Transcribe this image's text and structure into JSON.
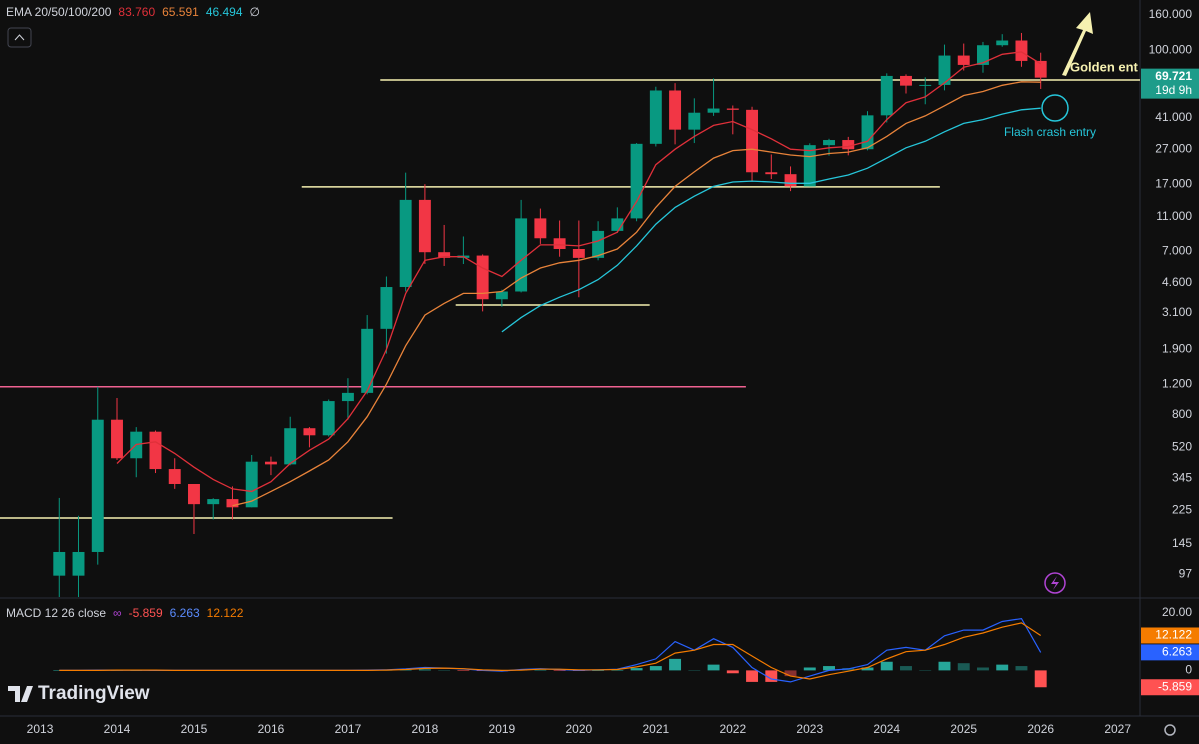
{
  "chart_data": [
    {
      "type": "candlestick",
      "indicator_label": "EMA 20/50/100/200",
      "ema200_label": "∅",
      "x": [
        2013.25,
        2013.5,
        2013.75,
        2014.0,
        2014.25,
        2014.5,
        2014.75,
        2015.0,
        2015.25,
        2015.5,
        2015.75,
        2016.0,
        2016.25,
        2016.5,
        2016.75,
        2017.0,
        2017.25,
        2017.5,
        2017.75,
        2018.0,
        2018.25,
        2018.5,
        2018.75,
        2019.0,
        2019.25,
        2019.5,
        2019.75,
        2020.0,
        2020.25,
        2020.5,
        2020.75,
        2021.0,
        2021.25,
        2021.5,
        2021.75,
        2022.0,
        2022.25,
        2022.5,
        2022.75,
        2023.0,
        2023.25,
        2023.5,
        2023.75,
        2024.0,
        2024.25,
        2024.5,
        2024.75,
        2025.0,
        2025.25,
        2025.5,
        2025.75,
        2026.0
      ],
      "open": [
        95,
        95,
        130,
        750,
        450,
        640,
        390,
        320,
        245,
        262,
        235,
        430,
        415,
        670,
        610,
        960,
        1070,
        2500,
        4350,
        13800,
        6900,
        6400,
        6600,
        3700,
        4100,
        10800,
        8300,
        7200,
        6400,
        9150,
        10800,
        29000,
        58800,
        35000,
        43800,
        46300,
        45500,
        19900,
        19400,
        16500,
        28500,
        30500,
        27000,
        42300,
        71300,
        62700,
        63300,
        93400,
        82500,
        107100,
        114000,
        87000
      ],
      "high": [
        266,
        210,
        1160,
        1000,
        680,
        650,
        450,
        320,
        265,
        310,
        470,
        460,
        780,
        680,
        980,
        1300,
        3000,
        5000,
        19800,
        17000,
        9900,
        8500,
        6700,
        4200,
        13800,
        12300,
        10500,
        10500,
        10400,
        12500,
        29300,
        61800,
        64800,
        53000,
        69000,
        48200,
        47400,
        25200,
        21500,
        29200,
        31000,
        31800,
        44700,
        73800,
        72800,
        70000,
        108000,
        109500,
        111900,
        124000,
        126000,
        97000
      ],
      "low": [
        65,
        70,
        110,
        440,
        350,
        370,
        300,
        165,
        200,
        200,
        235,
        360,
        410,
        520,
        600,
        750,
        1050,
        1800,
        4100,
        5900,
        5750,
        5900,
        3150,
        3350,
        4050,
        7700,
        6500,
        3800,
        6200,
        8900,
        10400,
        28000,
        28800,
        29300,
        42000,
        32900,
        17600,
        18200,
        15500,
        16500,
        24800,
        24900,
        26600,
        38500,
        56500,
        49000,
        58900,
        76600,
        74400,
        105000,
        80500,
        60000
      ],
      "close": [
        130,
        130,
        750,
        450,
        640,
        390,
        320,
        245,
        262,
        235,
        430,
        415,
        670,
        610,
        960,
        1070,
        2500,
        4350,
        13800,
        6900,
        6400,
        6600,
        3700,
        4100,
        10800,
        8300,
        7200,
        6400,
        9150,
        10800,
        29000,
        58800,
        35000,
        43800,
        46300,
        45500,
        19900,
        19400,
        16500,
        28500,
        30500,
        27000,
        42300,
        71300,
        62700,
        63300,
        93400,
        82500,
        107100,
        114000,
        87000,
        69721
      ],
      "up_color": "#089981",
      "down_color": "#f23645",
      "log_scale": true,
      "xlim": [
        2012.48,
        2027.29
      ],
      "ylim": [
        71.6,
        195000
      ],
      "xticks": [
        2013,
        2014,
        2015,
        2016,
        2017,
        2018,
        2019,
        2020,
        2021,
        2022,
        2023,
        2024,
        2025,
        2026,
        2027
      ],
      "yticks": [
        {
          "value": 160000,
          "label": "160.000"
        },
        {
          "value": 100000,
          "label": "100.000"
        },
        {
          "value": 41000,
          "label": "41.000"
        },
        {
          "value": 27000,
          "label": "27.000"
        },
        {
          "value": 17000,
          "label": "17.000"
        },
        {
          "value": 11000,
          "label": "11.000"
        },
        {
          "value": 7000,
          "label": "7.000"
        },
        {
          "value": 4600,
          "label": "4.600"
        },
        {
          "value": 3100,
          "label": "3.100"
        },
        {
          "value": 1900,
          "label": "1.900"
        },
        {
          "value": 1200,
          "label": "1.200"
        },
        800,
        520,
        345,
        225,
        145,
        97
      ],
      "series": [
        {
          "color": "#e0303a",
          "value_label": "83.760",
          "values": [
            null,
            null,
            null,
            420,
            540,
            560,
            480,
            400,
            340,
            300,
            290,
            330,
            420,
            500,
            580,
            760,
            1100,
            1900,
            4000,
            6200,
            6500,
            6500,
            5600,
            5000,
            6200,
            7600,
            7600,
            7500,
            8000,
            9000,
            13500,
            22000,
            27000,
            32000,
            37000,
            39000,
            35000,
            31000,
            27000,
            26500,
            27500,
            28000,
            30000,
            40000,
            50000,
            54000,
            65000,
            80000,
            85000,
            95000,
            98000,
            83760
          ]
        },
        {
          "color": "#e8833a",
          "value_label": "65.591",
          "values": [
            null,
            null,
            null,
            null,
            null,
            null,
            null,
            null,
            null,
            240,
            255,
            290,
            330,
            380,
            440,
            560,
            780,
            1200,
            2000,
            3000,
            3500,
            4000,
            4000,
            4100,
            4900,
            5600,
            6000,
            6200,
            6600,
            7200,
            9000,
            12500,
            16500,
            20000,
            24000,
            26500,
            27000,
            26000,
            25000,
            24500,
            25500,
            26000,
            27500,
            32000,
            38000,
            42000,
            48000,
            55000,
            58000,
            63000,
            66000,
            65591
          ]
        },
        {
          "color": "#26c6da",
          "value_label": "46.494",
          "values": [
            null,
            null,
            null,
            null,
            null,
            null,
            null,
            null,
            null,
            null,
            null,
            null,
            null,
            null,
            null,
            null,
            null,
            null,
            null,
            null,
            null,
            null,
            null,
            2400,
            2900,
            3400,
            3800,
            4200,
            4800,
            5800,
            7500,
            10000,
            12500,
            14500,
            16500,
            17500,
            17700,
            17500,
            17200,
            17200,
            18200,
            19200,
            21000,
            24000,
            27500,
            30000,
            34000,
            38000,
            40000,
            43000,
            45500,
            46494
          ]
        }
      ],
      "last_price": {
        "value": 69721,
        "label": "69.721"
      },
      "countdown": "19d 9h",
      "levels": [
        {
          "value": 67600,
          "x": [
            2017.42,
            2027.29
          ],
          "color": "#f5f0b0"
        },
        {
          "value": 16400,
          "x": [
            2016.4,
            2024.69
          ],
          "color": "#f5f0b0"
        },
        {
          "value": 3430,
          "x": [
            2018.4,
            2020.92
          ],
          "color": "#f5f0b0"
        },
        {
          "value": 1160,
          "x": [
            2012.48,
            2022.17
          ],
          "color": "#f06292"
        },
        {
          "value": 204,
          "x": [
            2012.48,
            2017.58
          ],
          "color": "#f5f0b0"
        }
      ],
      "annotations": [
        "Golden ent",
        "Flash crash entry"
      ]
    },
    {
      "type": "macd",
      "label": "MACD 12 26 close",
      "ylim": [
        -15.5,
        24.8
      ],
      "yticks": [
        {
          "value": 20,
          "label": "20.00"
        },
        0
      ],
      "series": [
        {
          "color": "#2962ff",
          "value_label": "6.263",
          "values": [
            0,
            0,
            0.1,
            0.1,
            0.1,
            0,
            0,
            0,
            0,
            0,
            0,
            0,
            0,
            0,
            0,
            0,
            0.1,
            0.2,
            0.5,
            1,
            0.8,
            0.5,
            0,
            -0.3,
            0.3,
            0.6,
            0.3,
            0,
            0.2,
            0.4,
            2,
            4,
            10,
            7,
            11,
            8,
            1,
            -3,
            -4,
            -2,
            0,
            0.5,
            2,
            7,
            8,
            7,
            12,
            14,
            14,
            17,
            18,
            6.263
          ]
        },
        {
          "color": "#f57c00",
          "value_label": "12.122",
          "values": [
            0,
            0,
            0,
            0.1,
            0.1,
            0.1,
            0,
            0,
            0,
            0,
            0,
            0,
            0,
            0,
            0,
            0,
            0,
            0.1,
            0.3,
            0.7,
            0.8,
            0.6,
            0.2,
            0,
            0.1,
            0.4,
            0.4,
            0.2,
            0.2,
            0.3,
            1.2,
            2.5,
            6,
            7,
            9,
            9,
            5,
            1,
            -2,
            -3,
            -1.5,
            -0.3,
            1,
            4,
            6.5,
            7,
            9,
            11.5,
            13,
            15,
            16.5,
            12.122
          ]
        }
      ],
      "histogram": {
        "value_label": "-5.859",
        "up_color": "#26a69a",
        "down_color": "#ff5252",
        "values": [
          0,
          0,
          0.1,
          0,
          0,
          -0.1,
          0,
          0,
          0,
          0,
          0,
          0,
          0,
          0,
          0,
          0,
          0.1,
          0.1,
          0.2,
          0.3,
          0,
          -0.1,
          -0.2,
          -0.3,
          0.2,
          0.2,
          -0.1,
          -0.2,
          0,
          0.1,
          0.8,
          1.5,
          4,
          0,
          2,
          -1,
          -4,
          -4,
          -2,
          1,
          1.5,
          0.8,
          1,
          3,
          1.5,
          0,
          3,
          2.5,
          1,
          2,
          1.5,
          -5.859
        ]
      }
    }
  ]
}
